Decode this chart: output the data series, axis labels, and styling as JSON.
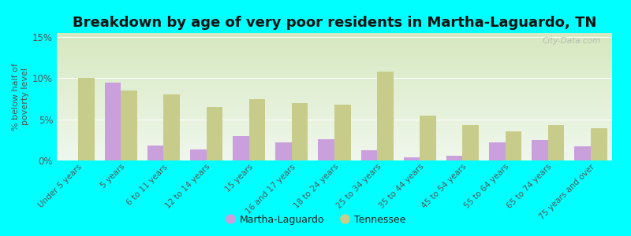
{
  "title": "Breakdown by age of very poor residents in Martha-Laguardo, TN",
  "ylabel": "% below half of\npoverty level",
  "categories": [
    "Under 5 years",
    "5 years",
    "6 to 11 years",
    "12 to 14 years",
    "15 years",
    "16 and 17 years",
    "18 to 24 years",
    "25 to 34 years",
    "35 to 44 years",
    "45 to 54 years",
    "55 to 64 years",
    "65 to 74 years",
    "75 years and over"
  ],
  "martha_values": [
    0,
    9.5,
    1.8,
    1.3,
    3.0,
    2.2,
    2.6,
    1.2,
    0.4,
    0.6,
    2.2,
    2.5,
    1.7
  ],
  "tennessee_values": [
    10.0,
    8.5,
    8.0,
    6.5,
    7.5,
    7.0,
    6.8,
    10.8,
    5.5,
    4.3,
    3.5,
    4.3,
    3.9
  ],
  "martha_color": "#c9a0dc",
  "tennessee_color": "#c8cc8a",
  "background_color": "#00ffff",
  "plot_bg_top": "#f0f5e8",
  "plot_bg_bottom": "#d8e8c0",
  "ylim": [
    0,
    15.5
  ],
  "yticks": [
    0,
    5,
    10,
    15
  ],
  "ytick_labels": [
    "0%",
    "5%",
    "10%",
    "15%"
  ],
  "title_fontsize": 13,
  "watermark": "City-Data.com",
  "bar_width": 0.38
}
